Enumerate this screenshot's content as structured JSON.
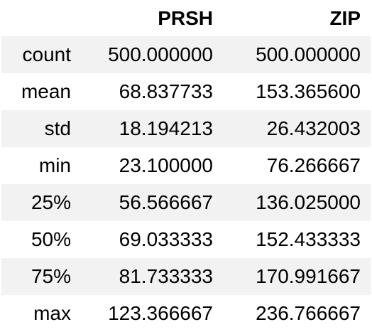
{
  "table": {
    "columns": [
      "",
      "PRSH",
      "ZIP"
    ],
    "rows": [
      {
        "label": "count",
        "values": [
          "500.000000",
          "500.000000"
        ]
      },
      {
        "label": "mean",
        "values": [
          "68.837733",
          "153.365600"
        ]
      },
      {
        "label": "std",
        "values": [
          "18.194213",
          "26.432003"
        ]
      },
      {
        "label": "min",
        "values": [
          "23.100000",
          "76.266667"
        ]
      },
      {
        "label": "25%",
        "values": [
          "56.566667",
          "136.025000"
        ]
      },
      {
        "label": "50%",
        "values": [
          "69.033333",
          "152.433333"
        ]
      },
      {
        "label": "75%",
        "values": [
          "81.733333",
          "170.991667"
        ]
      },
      {
        "label": "max",
        "values": [
          "123.366667",
          "236.766667"
        ]
      }
    ]
  },
  "colors": {
    "stripe": "#f2f2f2",
    "background": "#ffffff",
    "text": "#000000"
  }
}
